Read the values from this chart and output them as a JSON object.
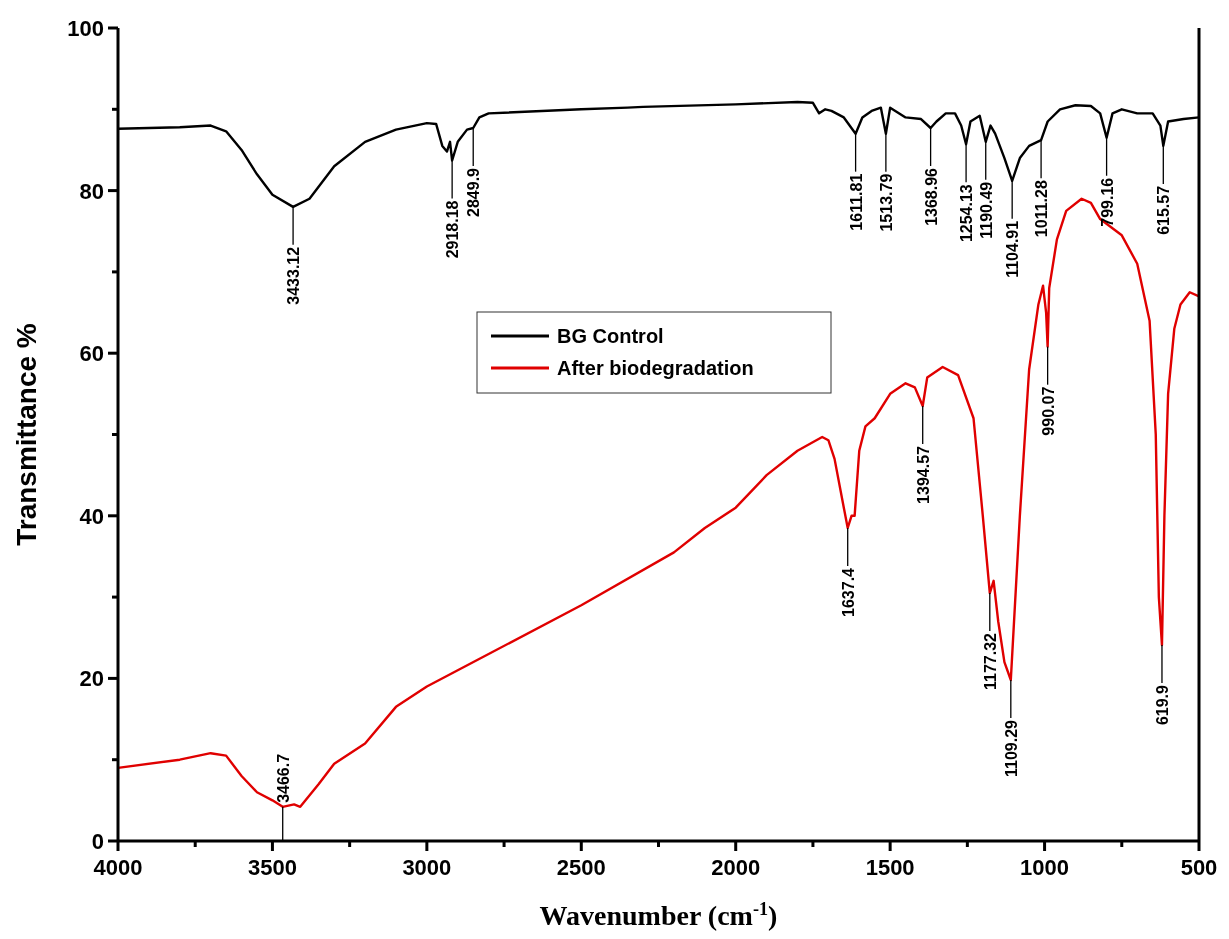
{
  "chart_data": {
    "type": "line",
    "xlabel": "Wavenumber (cm$^{-1}$)",
    "ylabel": "Transmittance %",
    "xlim": [
      4000,
      500
    ],
    "ylim": [
      0,
      100
    ],
    "xticks": [
      4000,
      {
        "value": 3750,
        "label": null
      },
      3500,
      {
        "value": 3250,
        "label": null
      },
      3000,
      {
        "value": 2750,
        "label": null
      },
      2500,
      {
        "value": 2250,
        "label": null
      },
      2000,
      {
        "value": 1750,
        "label": null
      },
      1500,
      {
        "value": 1250,
        "label": null
      },
      1000,
      {
        "value": 750,
        "label": null
      },
      500
    ],
    "yticks": [
      0,
      {
        "value": 10,
        "label": null
      },
      20,
      {
        "value": 30,
        "label": null
      },
      40,
      {
        "value": 50,
        "label": null
      },
      60,
      {
        "value": 70,
        "label": null
      },
      80,
      {
        "value": 90,
        "label": null
      },
      100
    ],
    "legend": "center",
    "grid": false,
    "marker": "none",
    "line_style": "solid",
    "series": [
      {
        "name": "BG Control",
        "color": "#000000",
        "x": [
          4000,
          3800,
          3700,
          3650,
          3600,
          3550,
          3500,
          3433.12,
          3380,
          3300,
          3200,
          3100,
          3000,
          2970,
          2950,
          2935,
          2925,
          2918.18,
          2900,
          2870,
          2849.9,
          2830,
          2800,
          2500,
          2350,
          2300,
          2000,
          1800,
          1750,
          1730,
          1710,
          1690,
          1650,
          1611.81,
          1590,
          1560,
          1530,
          1513.79,
          1500,
          1450,
          1400,
          1368.96,
          1350,
          1320,
          1290,
          1270,
          1254.13,
          1240,
          1210,
          1190.49,
          1175,
          1160,
          1130,
          1104.91,
          1080,
          1050,
          1011.28,
          990,
          950,
          900,
          850,
          820,
          799.16,
          780,
          750,
          700,
          650,
          625,
          615.57,
          600,
          550,
          500
        ],
        "values": [
          87.6,
          87.8,
          88,
          87.3,
          85,
          82,
          79.5,
          78,
          79,
          83,
          86,
          87.5,
          88.3,
          88.2,
          85.5,
          84.8,
          86,
          83.7,
          86,
          87.5,
          87.7,
          89,
          89.5,
          90,
          90.2,
          90.3,
          90.6,
          90.9,
          90.8,
          89.5,
          90,
          89.8,
          89,
          87,
          89,
          89.8,
          90.2,
          87,
          90.2,
          89,
          88.8,
          87.7,
          88.5,
          89.5,
          89.5,
          88,
          85.7,
          88.5,
          89.2,
          86,
          88,
          87,
          84,
          81.2,
          84,
          85.5,
          86.2,
          88.5,
          90,
          90.5,
          90.4,
          89.5,
          86.5,
          89.5,
          90,
          89.5,
          89.5,
          88,
          85.5,
          88.5,
          88.8,
          89
        ]
      },
      {
        "name": "After biodegradation",
        "color": "#e00000",
        "x": [
          4000,
          3800,
          3700,
          3650,
          3600,
          3550,
          3500,
          3466.7,
          3430,
          3410,
          3350,
          3300,
          3200,
          3100,
          3000,
          2900,
          2800,
          2500,
          2200,
          2100,
          2000,
          1900,
          1800,
          1720,
          1700,
          1680,
          1650,
          1637.4,
          1625,
          1615,
          1600,
          1580,
          1550,
          1500,
          1450,
          1420,
          1394.57,
          1380,
          1330,
          1280,
          1230,
          1200,
          1177.32,
          1165,
          1150,
          1130,
          1109.29,
          1080,
          1050,
          1020,
          1005,
          995,
          990.07,
          985,
          960,
          930,
          880,
          850,
          820,
          750,
          700,
          660,
          640,
          630,
          619.9,
          612,
          600,
          580,
          560,
          530,
          500
        ],
        "values": [
          9,
          10,
          10.8,
          10.5,
          8,
          6,
          5,
          4.2,
          4.5,
          4.2,
          7,
          9.5,
          12,
          16.5,
          19,
          21,
          23,
          29,
          35.5,
          38.5,
          41,
          45,
          48,
          49.7,
          49.3,
          47,
          41,
          38.5,
          40,
          40,
          48,
          51,
          52,
          55,
          56.3,
          55.8,
          53.5,
          57,
          58.3,
          57.3,
          52,
          40,
          30.5,
          32,
          27,
          22,
          19.8,
          40,
          58,
          66,
          68.3,
          65,
          60.8,
          68,
          74,
          77.5,
          79,
          78.5,
          76.5,
          74.5,
          71,
          64,
          50,
          30,
          24.1,
          40,
          55,
          63,
          66,
          67.5,
          67
        ]
      }
    ],
    "annotations": [
      {
        "text": "3433.12",
        "x": 3433.12,
        "y": 78
      },
      {
        "text": "2918.18",
        "x": 2918.18,
        "y": 83.7
      },
      {
        "text": "2849.9",
        "x": 2849.9,
        "y": 87.7
      },
      {
        "text": "1611.81",
        "x": 1611.81,
        "y": 87
      },
      {
        "text": "1513.79",
        "x": 1513.79,
        "y": 87
      },
      {
        "text": "1368.96",
        "x": 1368.96,
        "y": 87.7
      },
      {
        "text": "1254.13",
        "x": 1254.13,
        "y": 85.7
      },
      {
        "text": "1190.49",
        "x": 1190.49,
        "y": 86
      },
      {
        "text": "1104.91",
        "x": 1104.91,
        "y": 81.2
      },
      {
        "text": "1011.28",
        "x": 1011.28,
        "y": 86.2
      },
      {
        "text": "799.16",
        "x": 799.16,
        "y": 86.5
      },
      {
        "text": "615.57",
        "x": 615.57,
        "y": 85.5
      },
      {
        "text": "3466.7",
        "x": 3466.7,
        "y": 4.2
      },
      {
        "text": "1637.4",
        "x": 1637.4,
        "y": 38.5
      },
      {
        "text": "1394.57",
        "x": 1394.57,
        "y": 53.5
      },
      {
        "text": "1177.32",
        "x": 1177.32,
        "y": 30.5
      },
      {
        "text": "1109.29",
        "x": 1109.29,
        "y": 19.8
      },
      {
        "text": "990.07",
        "x": 990.07,
        "y": 60.8
      },
      {
        "text": "619.9",
        "x": 619.9,
        "y": 24.1
      }
    ]
  }
}
